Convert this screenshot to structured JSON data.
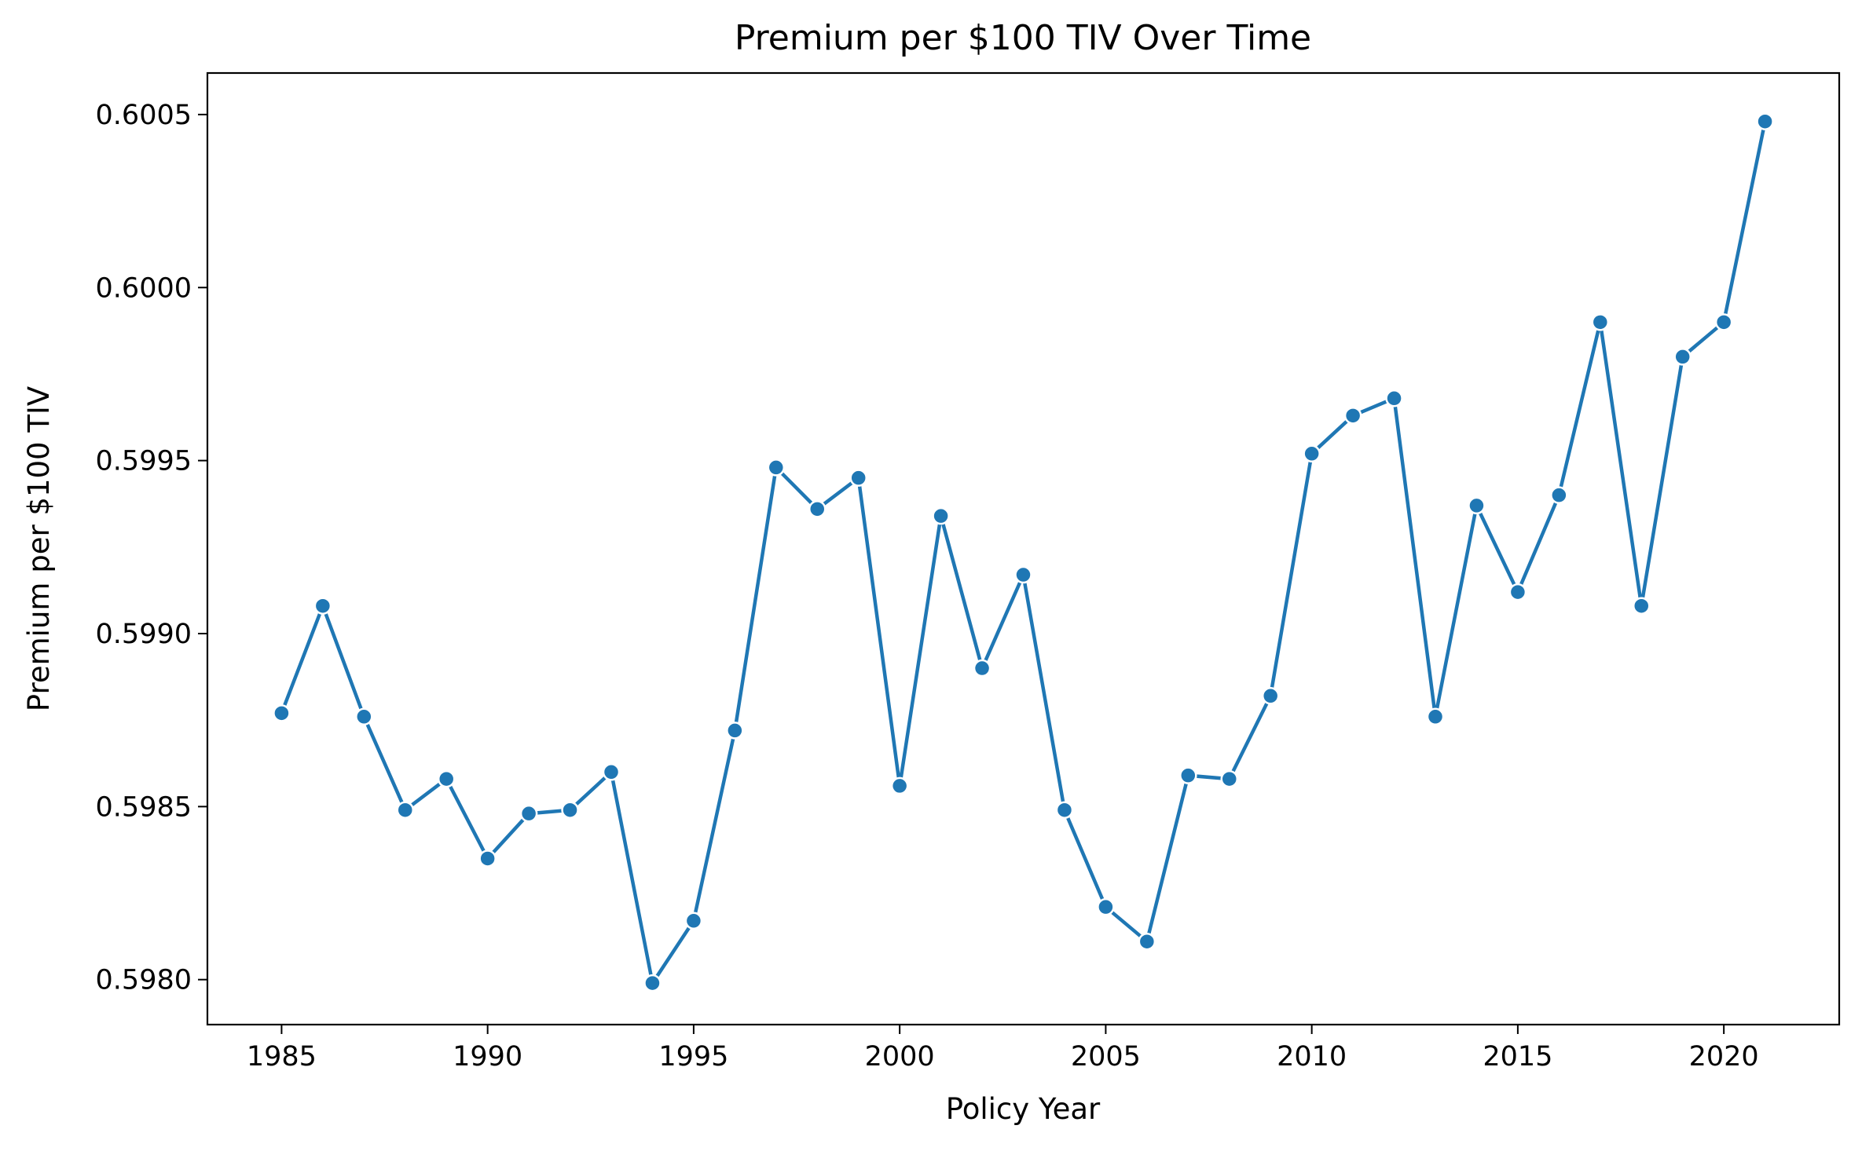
{
  "chart_data": {
    "type": "line",
    "title": "Premium per $100 TIV Over Time",
    "xlabel": "Policy Year",
    "ylabel": "Premium per $100 TIV",
    "x_ticks": [
      "1985",
      "1990",
      "1995",
      "2000",
      "2005",
      "2010",
      "2015",
      "2020"
    ],
    "y_ticks": [
      "0.5980",
      "0.5985",
      "0.5990",
      "0.5995",
      "0.6000",
      "0.6005"
    ],
    "xlim": [
      1983.2,
      2022.8
    ],
    "ylim": [
      0.59787,
      0.60062
    ],
    "grid": false,
    "color": "#1f77b4",
    "series": [
      {
        "x": [
          1985,
          1986,
          1987,
          1988,
          1989,
          1990,
          1991,
          1992,
          1993,
          1994,
          1995,
          1996,
          1997,
          1998,
          1999,
          2000,
          2001,
          2002,
          2003,
          2004,
          2005,
          2006,
          2007,
          2008,
          2009,
          2010,
          2011,
          2012,
          2013,
          2014,
          2015,
          2016,
          2017,
          2018,
          2019,
          2020,
          2021
        ],
        "values": [
          0.59877,
          0.59908,
          0.59876,
          0.59849,
          0.59858,
          0.59835,
          0.59848,
          0.59849,
          0.5986,
          0.59799,
          0.59817,
          0.59872,
          0.59948,
          0.59936,
          0.59945,
          0.59856,
          0.59934,
          0.5989,
          0.59917,
          0.59849,
          0.59821,
          0.59811,
          0.59859,
          0.59858,
          0.59882,
          0.59952,
          0.59963,
          0.59968,
          0.59876,
          0.59937,
          0.59912,
          0.5994,
          0.5999,
          0.59908,
          0.5998,
          0.5999,
          0.60048
        ]
      }
    ]
  }
}
